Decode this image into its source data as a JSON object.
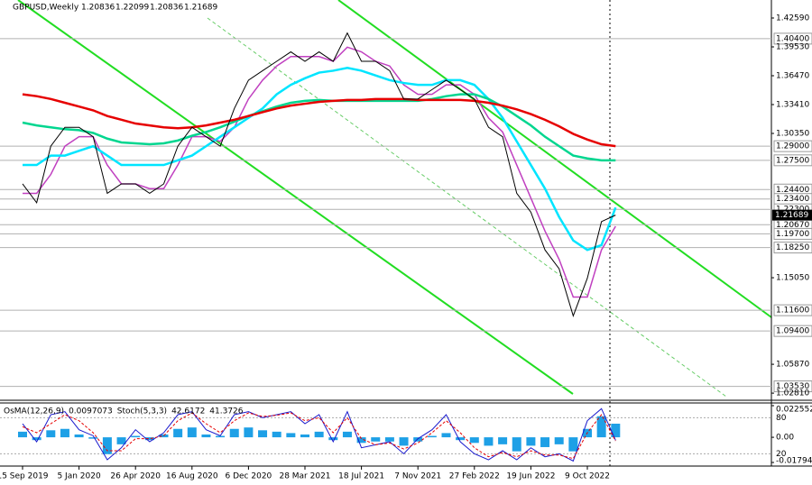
{
  "chart_data": [
    {
      "type": "line",
      "title": "GBPUSD,Weekly",
      "ohlc": [
        1.20836,
        1.22099,
        1.20836,
        1.21689
      ],
      "categories": [
        "15 Sep 2019",
        null,
        null,
        null,
        "5 Jan 2020",
        null,
        null,
        null,
        "26 Apr 2020",
        null,
        null,
        null,
        "16 Aug 2020",
        null,
        null,
        null,
        "6 Dec 2020",
        null,
        null,
        null,
        "28 Mar 2021",
        null,
        null,
        null,
        "18 Jul 2021",
        null,
        null,
        null,
        "7 Nov 2021",
        null,
        null,
        null,
        "27 Feb 2022",
        null,
        null,
        null,
        "19 Jun 2022",
        null,
        null,
        null,
        "9 Oct 2022",
        null,
        null
      ],
      "ylim": [
        1.0215,
        1.445
      ],
      "yticks": [
        {
          "value": 1.4259,
          "label": "1.42590"
        },
        {
          "value": 1.3953,
          "label": "1.39530"
        },
        {
          "value": 1.3647,
          "label": "1.36470"
        },
        {
          "value": 1.3341,
          "label": "1.33410"
        },
        {
          "value": 1.3035,
          "label": "1.30350"
        },
        {
          "value": 1.1505,
          "label": "1.15050"
        },
        {
          "value": 1.0587,
          "label": "1.05870"
        },
        {
          "value": 1.0281,
          "label": "1.02810"
        }
      ],
      "levels": [
        {
          "value": 1.404,
          "label": "1.40400"
        },
        {
          "value": 1.29,
          "label": "1.29000"
        },
        {
          "value": 1.275,
          "label": "1.27500"
        },
        {
          "value": 1.244,
          "label": "1.24400"
        },
        {
          "value": 1.234,
          "label": "1.23400"
        },
        {
          "value": 1.223,
          "label": "1.22300"
        },
        {
          "value": 1.2067,
          "label": "1.20670"
        },
        {
          "value": 1.197,
          "label": "1.19700"
        },
        {
          "value": 1.1825,
          "label": "1.18250"
        },
        {
          "value": 1.116,
          "label": "1.11600"
        },
        {
          "value": 1.094,
          "label": "1.09400"
        },
        {
          "value": 1.0353,
          "label": "1.03530"
        }
      ],
      "series": [
        {
          "color": "#000000",
          "values": [
            1.25,
            1.23,
            1.29,
            1.31,
            1.31,
            1.3,
            1.24,
            1.25,
            1.25,
            1.24,
            1.25,
            1.29,
            1.31,
            1.3,
            1.29,
            1.33,
            1.36,
            1.37,
            1.38,
            1.39,
            1.38,
            1.39,
            1.38,
            1.41,
            1.38,
            1.38,
            1.37,
            1.34,
            1.34,
            1.35,
            1.36,
            1.35,
            1.34,
            1.31,
            1.3,
            1.24,
            1.22,
            1.18,
            1.16,
            1.11,
            1.15,
            1.21,
            1.21689
          ]
        },
        {
          "color": "#e60000",
          "values": [
            1.345,
            1.343,
            1.34,
            1.336,
            1.332,
            1.328,
            1.322,
            1.318,
            1.314,
            1.312,
            1.31,
            1.309,
            1.31,
            1.312,
            1.315,
            1.318,
            1.322,
            1.326,
            1.33,
            1.333,
            1.335,
            1.337,
            1.338,
            1.339,
            1.339,
            1.34,
            1.34,
            1.34,
            1.339,
            1.339,
            1.339,
            1.339,
            1.338,
            1.336,
            1.333,
            1.329,
            1.324,
            1.318,
            1.311,
            1.303,
            1.297,
            1.292,
            1.29
          ]
        },
        {
          "color": "#00d68f",
          "values": [
            1.315,
            1.312,
            1.31,
            1.308,
            1.307,
            1.304,
            1.298,
            1.294,
            1.293,
            1.292,
            1.293,
            1.296,
            1.301,
            1.305,
            1.31,
            1.316,
            1.322,
            1.327,
            1.332,
            1.336,
            1.338,
            1.339,
            1.338,
            1.338,
            1.338,
            1.338,
            1.338,
            1.338,
            1.338,
            1.34,
            1.343,
            1.345,
            1.345,
            1.34,
            1.332,
            1.322,
            1.312,
            1.3,
            1.29,
            1.28,
            1.277,
            1.275,
            1.275
          ]
        },
        {
          "color": "#00e5ff",
          "values": [
            1.27,
            1.27,
            1.28,
            1.28,
            1.285,
            1.29,
            1.28,
            1.27,
            1.27,
            1.27,
            1.27,
            1.275,
            1.28,
            1.29,
            1.3,
            1.31,
            1.32,
            1.33,
            1.345,
            1.355,
            1.362,
            1.368,
            1.37,
            1.373,
            1.37,
            1.365,
            1.36,
            1.357,
            1.355,
            1.355,
            1.36,
            1.36,
            1.355,
            1.34,
            1.32,
            1.295,
            1.27,
            1.245,
            1.215,
            1.19,
            1.18,
            1.185,
            1.225
          ]
        },
        {
          "color": "#c040c0",
          "values": [
            1.24,
            1.24,
            1.26,
            1.29,
            1.3,
            1.3,
            1.27,
            1.25,
            1.25,
            1.245,
            1.245,
            1.27,
            1.3,
            1.3,
            1.295,
            1.31,
            1.34,
            1.36,
            1.375,
            1.385,
            1.385,
            1.385,
            1.38,
            1.395,
            1.39,
            1.38,
            1.375,
            1.355,
            1.345,
            1.345,
            1.355,
            1.355,
            1.345,
            1.32,
            1.305,
            1.27,
            1.235,
            1.2,
            1.17,
            1.13,
            1.13,
            1.18,
            1.205
          ]
        }
      ]
    },
    {
      "type": "bar",
      "ylim": [
        -0.017948,
        0.0225525
      ],
      "yticks": [
        0.0225525,
        {
          "value": 0,
          "label": "0.00"
        },
        -0.017948
      ],
      "y2lim": [
        0,
        100
      ],
      "y2ticks": [
        80,
        20
      ],
      "series": [
        {
          "name": "OsMA(12,26,9)",
          "readout": 0.0097073,
          "color": "#1ea0e6",
          "values": [
            0.004,
            -0.002,
            0.005,
            0.006,
            0.002,
            -0.001,
            -0.012,
            -0.005,
            0.001,
            -0.002,
            0.002,
            0.006,
            0.007,
            0.002,
            0.001,
            0.006,
            0.007,
            0.005,
            0.004,
            0.003,
            0.002,
            0.004,
            -0.002,
            0.004,
            -0.004,
            -0.003,
            -0.003,
            -0.006,
            -0.003,
            0.001,
            0.003,
            -0.002,
            -0.004,
            -0.006,
            -0.005,
            -0.01,
            -0.006,
            -0.007,
            -0.005,
            -0.01,
            0.006,
            0.015,
            0.0097073
          ]
        },
        {
          "name": "Stoch(5,3,3)",
          "axis": "y2",
          "readout": 42.6172,
          "color": "#1a1acd",
          "values": [
            70,
            40,
            85,
            90,
            60,
            50,
            10,
            30,
            60,
            40,
            55,
            85,
            90,
            60,
            50,
            85,
            90,
            80,
            85,
            90,
            70,
            85,
            40,
            90,
            30,
            35,
            40,
            20,
            45,
            60,
            85,
            40,
            20,
            10,
            25,
            10,
            30,
            15,
            20,
            8,
            75,
            95,
            42.6172
          ]
        },
        {
          "axis": "y2",
          "readout": 41.3726,
          "color": "#e60000",
          "values": [
            65,
            55,
            70,
            85,
            75,
            55,
            25,
            25,
            45,
            45,
            50,
            75,
            88,
            70,
            55,
            75,
            88,
            82,
            84,
            88,
            75,
            80,
            55,
            80,
            45,
            35,
            38,
            28,
            38,
            55,
            75,
            55,
            30,
            15,
            22,
            15,
            25,
            18,
            18,
            12,
            55,
            85,
            41.3726
          ]
        }
      ]
    }
  ]
}
